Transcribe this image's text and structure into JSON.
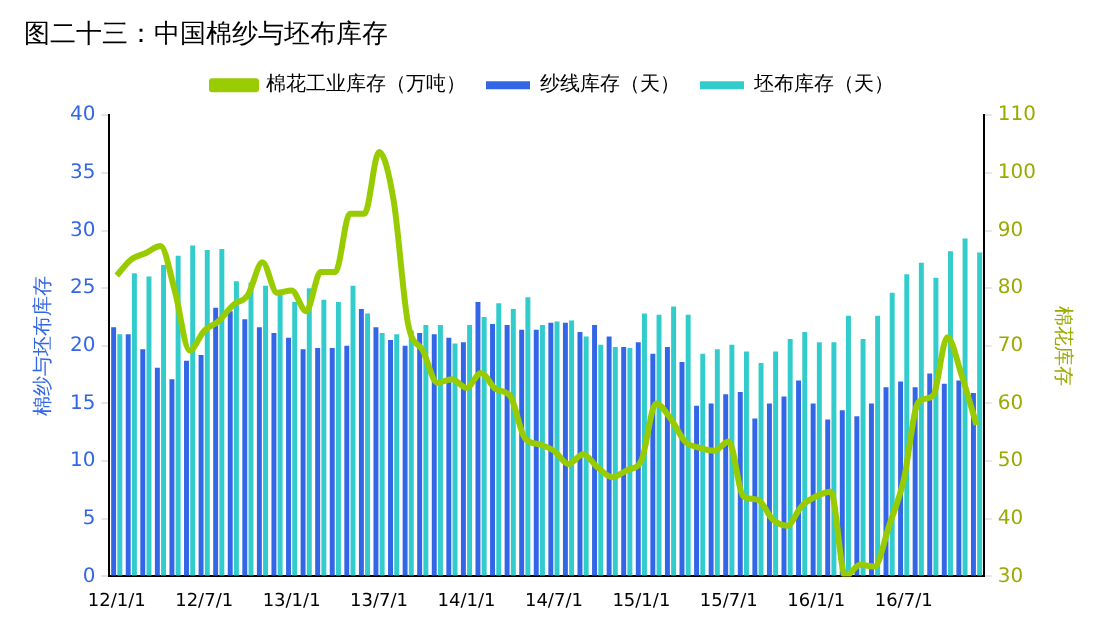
{
  "chart_data": {
    "type": "bar",
    "title": "图二十三：中国棉纱与坯布库存",
    "ylabel": "棉纱与坯布库存",
    "y2label": "棉花库存",
    "categories": [
      "12/1/1",
      null,
      null,
      null,
      null,
      null,
      "12/7/1",
      null,
      null,
      null,
      null,
      null,
      "13/1/1",
      null,
      null,
      null,
      null,
      null,
      "13/7/1",
      null,
      null,
      null,
      null,
      null,
      "14/1/1",
      null,
      null,
      null,
      null,
      null,
      "14/7/1",
      null,
      null,
      null,
      null,
      null,
      "15/1/1",
      null,
      null,
      null,
      null,
      null,
      "15/7/1",
      null,
      null,
      null,
      null,
      null,
      "16/1/1",
      null,
      null,
      null,
      null,
      null,
      "16/7/1",
      null,
      null,
      null,
      null,
      null
    ],
    "series": [
      {
        "name": "纱线库存（天）",
        "color": "#3366e6",
        "values": [
          21.6,
          21.0,
          19.7,
          18.1,
          17.1,
          18.7,
          19.2,
          23.3,
          23.0,
          22.3,
          21.6,
          21.1,
          20.7,
          19.7,
          19.8,
          19.8,
          20.0,
          23.2,
          21.6,
          20.5,
          20.0,
          21.1,
          21.0,
          20.7,
          20.3,
          23.8,
          21.9,
          21.8,
          21.4,
          21.4,
          22.0,
          22.0,
          21.2,
          21.8,
          20.8,
          19.9,
          20.3,
          19.3,
          19.9,
          18.6,
          14.8,
          15.0,
          15.8,
          16.0,
          13.7,
          15.0,
          15.6,
          17.0,
          15.0,
          13.6,
          14.4,
          13.9,
          15.0,
          16.4,
          16.9,
          16.4,
          17.6,
          16.7,
          17.0,
          15.9
        ]
      },
      {
        "name": "坯布库存（天）",
        "color": "#33cccc",
        "values": [
          21.0,
          26.3,
          26.0,
          27.0,
          27.8,
          28.7,
          28.3,
          28.4,
          25.6,
          25.5,
          25.2,
          24.8,
          23.8,
          25.0,
          24.0,
          23.8,
          25.2,
          22.8,
          21.1,
          21.0,
          21.3,
          21.8,
          21.8,
          20.2,
          21.8,
          22.5,
          23.7,
          23.2,
          24.2,
          21.8,
          22.1,
          22.2,
          20.8,
          20.1,
          19.9,
          19.8,
          22.8,
          22.7,
          23.4,
          22.7,
          19.3,
          19.7,
          20.1,
          19.5,
          18.5,
          19.5,
          20.6,
          21.2,
          20.3,
          20.3,
          22.6,
          20.6,
          22.6,
          24.6,
          26.2,
          27.2,
          25.9,
          28.2,
          29.3,
          28.1
        ]
      },
      {
        "name": "棉花工业库存（万吨）",
        "type": "line",
        "axis": "y2",
        "color": "#99cc00",
        "values": [
          82.2,
          85.0,
          86.1,
          87.3,
          79.4,
          69.2,
          72.6,
          74.3,
          77.1,
          78.8,
          84.5,
          79.2,
          79.6,
          76.0,
          82.8,
          82.8,
          92.9,
          92.9,
          103.6,
          95.2,
          73.7,
          69.2,
          63.6,
          64.2,
          62.7,
          65.3,
          62.5,
          61.3,
          54.0,
          52.9,
          51.8,
          49.5,
          51.2,
          48.9,
          47.2,
          48.4,
          50.1,
          60.0,
          57.4,
          53.4,
          52.3,
          51.8,
          53.4,
          43.9,
          43.3,
          39.9,
          38.8,
          42.2,
          43.9,
          44.7,
          30.0,
          32.0,
          31.7,
          38.8,
          46.7,
          60.2,
          61.3,
          71.5,
          64.7,
          56.3
        ]
      }
    ],
    "ylim": [
      0,
      40
    ],
    "yticks": [
      0,
      5,
      10,
      15,
      20,
      25,
      30,
      35,
      40
    ],
    "y2lim": [
      30,
      110
    ],
    "y2ticks": [
      30,
      40,
      50,
      60,
      70,
      80,
      90,
      100,
      110
    ],
    "legend": "top",
    "grid": false,
    "marker": "none"
  }
}
